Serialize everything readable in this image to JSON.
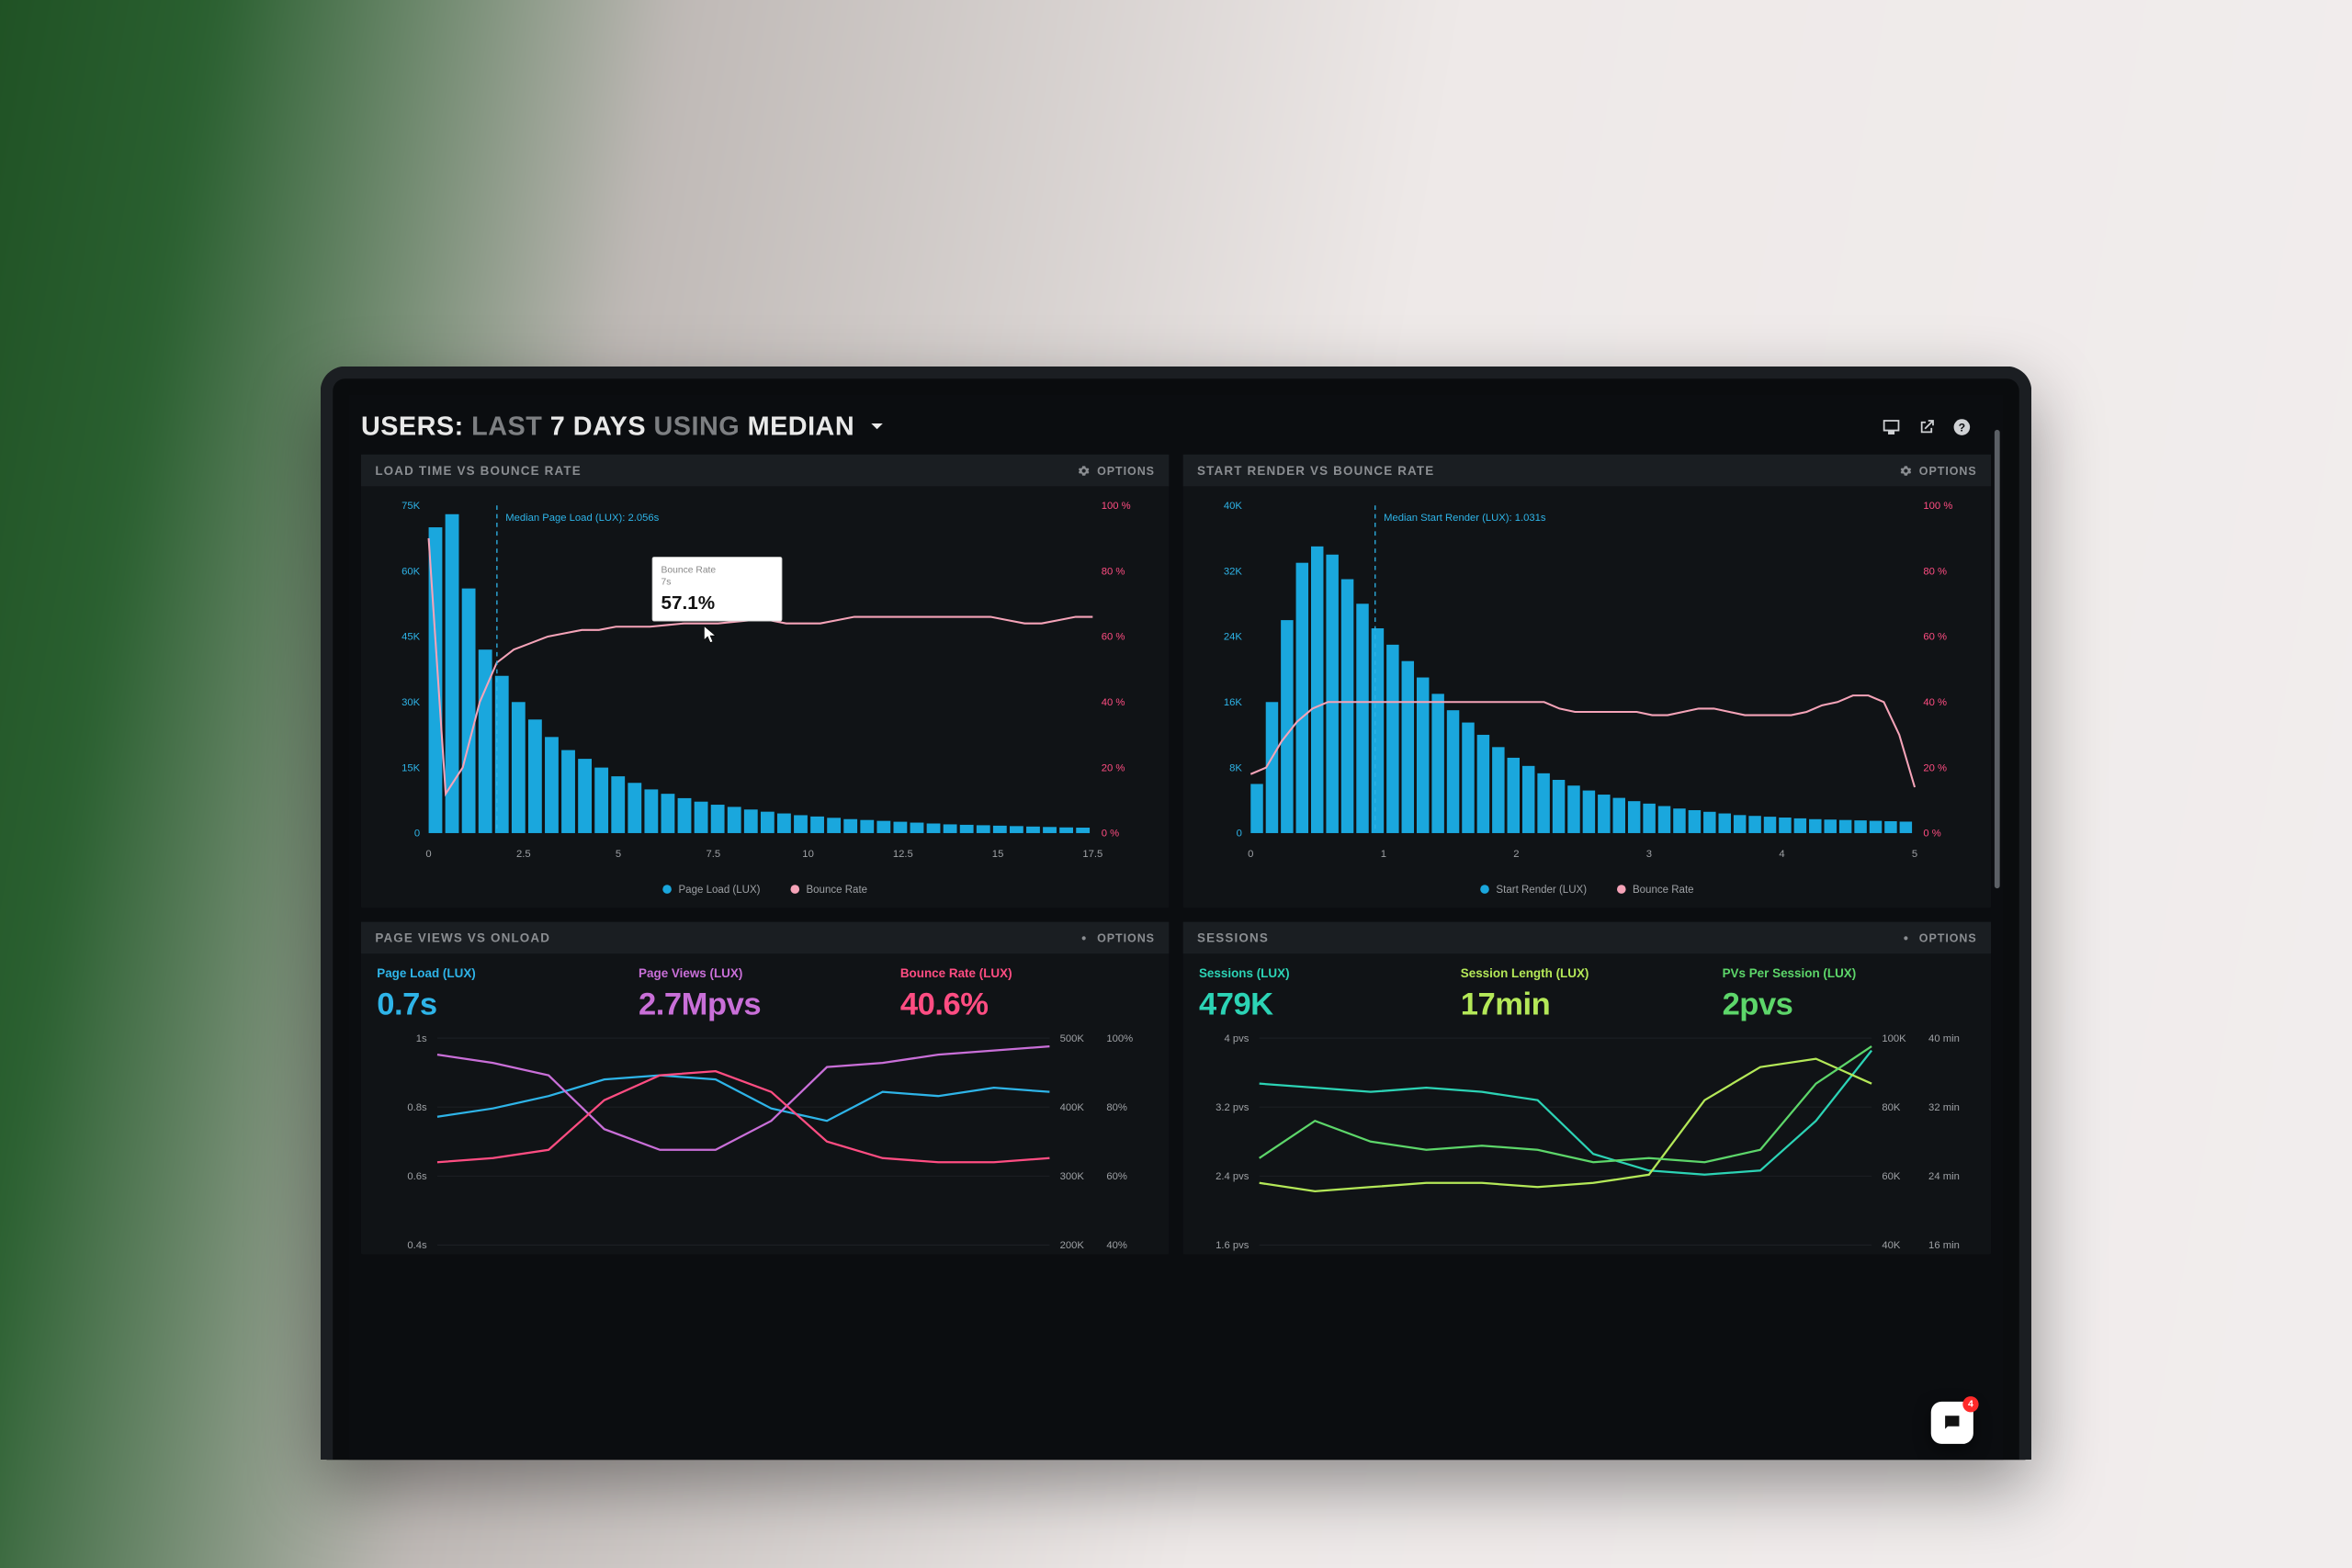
{
  "header": {
    "prefix": "USERS:",
    "dim1": "LAST",
    "bold1": "7 DAYS",
    "dim2": "USING",
    "bold2": "MEDIAN"
  },
  "options_label": "OPTIONS",
  "colors": {
    "bar": "#1aa7dd",
    "line": "#f5a3b8",
    "y1": "#2eb4e8",
    "y2": "#ff4d82",
    "panel_bg": "#101316",
    "panel_hdr": "#1a1e22",
    "blue": "#2eb4e8",
    "purple": "#c96fd8",
    "pink": "#ff4d82",
    "teal": "#2cd3b5",
    "lime": "#b4e858",
    "green": "#5dd66a"
  },
  "chart1": {
    "title": "LOAD TIME VS BOUNCE RATE",
    "median_label": "Median Page Load (LUX): 2.056s",
    "median_x": 2.056,
    "y1": {
      "max": 75000,
      "ticks": [
        "75K",
        "60K",
        "45K",
        "30K",
        "15K",
        "0"
      ]
    },
    "y2": {
      "ticks": [
        "100 %",
        "80 %",
        "60 %",
        "40 %",
        "20 %",
        "0 %"
      ]
    },
    "x": {
      "max": 20,
      "ticks": [
        "0",
        "2.5",
        "5",
        "7.5",
        "10",
        "12.5",
        "15",
        "17.5"
      ]
    },
    "bars": [
      70000,
      73000,
      56000,
      42000,
      36000,
      30000,
      26000,
      22000,
      19000,
      17000,
      15000,
      13000,
      11500,
      10000,
      9000,
      8000,
      7200,
      6500,
      6000,
      5400,
      4900,
      4500,
      4100,
      3800,
      3500,
      3200,
      3000,
      2800,
      2600,
      2400,
      2200,
      2000,
      1900,
      1800,
      1700,
      1600,
      1500,
      1400,
      1300,
      1250
    ],
    "line": [
      90,
      12,
      20,
      40,
      52,
      56,
      58,
      60,
      61,
      62,
      62,
      63,
      63,
      63,
      63.5,
      64,
      64,
      64,
      64.5,
      65,
      65,
      64,
      64,
      64,
      65,
      66,
      66,
      66,
      66,
      66,
      66,
      66,
      66,
      66,
      65,
      64,
      64,
      65,
      66,
      66
    ],
    "tooltip": {
      "k1": "Bounce Rate",
      "k2": "7s",
      "val": "57.1%",
      "x": 7
    },
    "legend": {
      "a": "Page Load (LUX)",
      "b": "Bounce Rate"
    }
  },
  "chart2": {
    "title": "START RENDER VS BOUNCE RATE",
    "median_label": "Median Start Render (LUX): 1.031s",
    "median_x": 1.031,
    "y1": {
      "max": 40000,
      "ticks": [
        "40K",
        "32K",
        "24K",
        "16K",
        "8K",
        "0"
      ]
    },
    "y2": {
      "ticks": [
        "100 %",
        "80 %",
        "60 %",
        "40 %",
        "20 %",
        "0 %"
      ]
    },
    "x": {
      "max": 5.5,
      "ticks": [
        "0",
        "1",
        "2",
        "3",
        "4",
        "5"
      ]
    },
    "bars": [
      6000,
      16000,
      26000,
      33000,
      35000,
      34000,
      31000,
      28000,
      25000,
      23000,
      21000,
      19000,
      17000,
      15000,
      13500,
      12000,
      10500,
      9200,
      8200,
      7300,
      6500,
      5800,
      5200,
      4700,
      4300,
      3900,
      3600,
      3300,
      3000,
      2800,
      2600,
      2400,
      2200,
      2100,
      2000,
      1900,
      1800,
      1700,
      1650,
      1600,
      1550,
      1500,
      1450,
      1400
    ],
    "line": [
      18,
      20,
      28,
      34,
      38,
      40,
      40,
      40,
      40,
      40,
      40,
      40,
      40,
      40,
      40,
      40,
      40,
      40,
      40,
      40,
      38,
      37,
      37,
      37,
      37,
      37,
      36,
      36,
      37,
      38,
      38,
      37,
      36,
      36,
      36,
      36,
      37,
      39,
      40,
      42,
      42,
      40,
      30,
      14
    ],
    "legend": {
      "a": "Start Render (LUX)",
      "b": "Bounce Rate"
    }
  },
  "panel3": {
    "title": "PAGE VIEWS VS ONLOAD",
    "stats": [
      {
        "label": "Page Load (LUX)",
        "value": "0.7s",
        "cls": "c-blue"
      },
      {
        "label": "Page Views (LUX)",
        "value": "2.7Mpvs",
        "cls": "c-purple"
      },
      {
        "label": "Bounce Rate (LUX)",
        "value": "40.6%",
        "cls": "c-pink"
      }
    ],
    "y_left": [
      "1s",
      "0.8s",
      "0.6s",
      "0.4s"
    ],
    "y_right1": [
      "500K",
      "400K",
      "300K",
      "200K"
    ],
    "y_right2": [
      "100%",
      "80%",
      "60%",
      "40%"
    ],
    "lines": {
      "blue": [
        0.62,
        0.66,
        0.72,
        0.8,
        0.82,
        0.8,
        0.66,
        0.6,
        0.74,
        0.72,
        0.76,
        0.74
      ],
      "purple": [
        0.92,
        0.88,
        0.82,
        0.56,
        0.46,
        0.46,
        0.6,
        0.86,
        0.88,
        0.92,
        0.94,
        0.96
      ],
      "pink": [
        0.4,
        0.42,
        0.46,
        0.7,
        0.82,
        0.84,
        0.74,
        0.5,
        0.42,
        0.4,
        0.4,
        0.42
      ]
    }
  },
  "panel4": {
    "title": "SESSIONS",
    "stats": [
      {
        "label": "Sessions (LUX)",
        "value": "479K",
        "cls": "c-teal"
      },
      {
        "label": "Session Length (LUX)",
        "value": "17min",
        "cls": "c-lime"
      },
      {
        "label": "PVs Per Session (LUX)",
        "value": "2pvs",
        "cls": "c-green"
      }
    ],
    "y_left": [
      "4 pvs",
      "3.2 pvs",
      "2.4 pvs",
      "1.6 pvs"
    ],
    "y_right1": [
      "100K",
      "80K",
      "60K",
      "40K"
    ],
    "y_right2": [
      "40 min",
      "32 min",
      "24 min",
      "16 min"
    ],
    "lines": {
      "teal": [
        0.78,
        0.76,
        0.74,
        0.76,
        0.74,
        0.7,
        0.44,
        0.36,
        0.34,
        0.36,
        0.6,
        0.94
      ],
      "lime": [
        0.3,
        0.26,
        0.28,
        0.3,
        0.3,
        0.28,
        0.3,
        0.34,
        0.7,
        0.86,
        0.9,
        0.78
      ],
      "green": [
        0.42,
        0.6,
        0.5,
        0.46,
        0.48,
        0.46,
        0.4,
        0.42,
        0.4,
        0.46,
        0.78,
        0.96
      ]
    }
  },
  "chat_count": "4"
}
